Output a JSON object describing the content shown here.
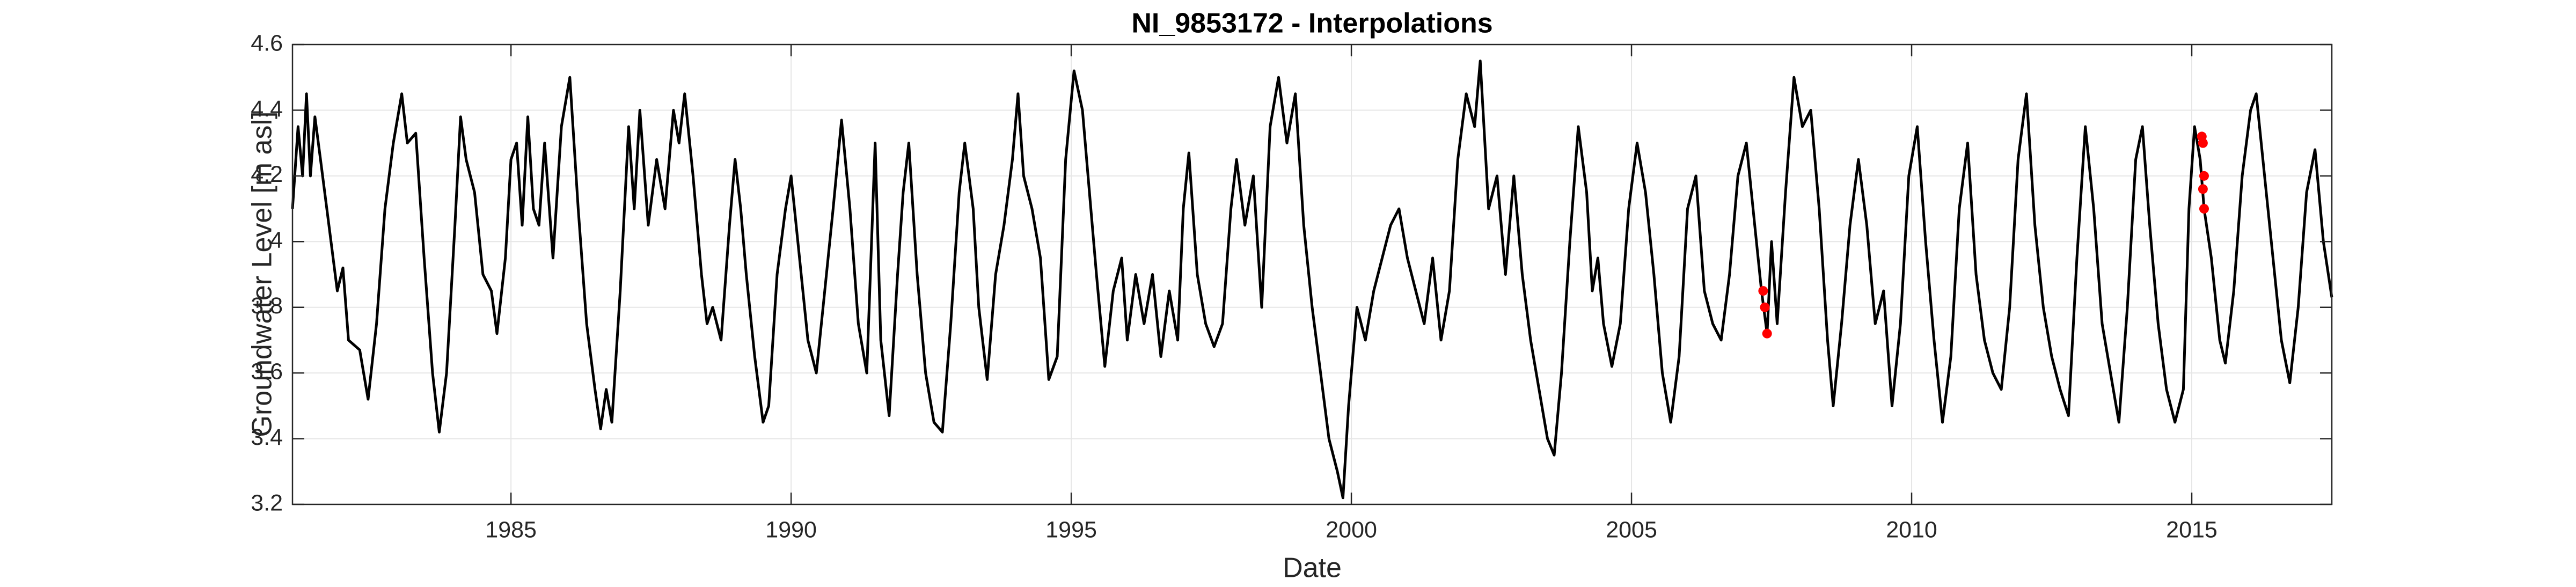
{
  "chart_data": {
    "type": "line",
    "title": "NI_9853172 - Interpolations",
    "xlabel": "Date",
    "ylabel": "Groundwater Level [m asl]",
    "xlim": [
      1981.1,
      2017.5
    ],
    "xticks": [
      1985,
      1990,
      1995,
      2000,
      2005,
      2010,
      2015
    ],
    "ylim": [
      3.2,
      4.6
    ],
    "yticks": [
      3.2,
      3.4,
      3.6,
      3.8,
      4,
      4.2,
      4.4,
      4.6
    ],
    "grid": true,
    "series": [
      {
        "color": "#000000",
        "style": "line",
        "x": [
          1981.1,
          1981.2,
          1981.28,
          1981.35,
          1981.42,
          1981.5,
          1981.6,
          1981.75,
          1981.9,
          1982.0,
          1982.1,
          1982.3,
          1982.45,
          1982.6,
          1982.75,
          1982.9,
          1983.05,
          1983.15,
          1983.3,
          1983.45,
          1983.6,
          1983.72,
          1983.85,
          1984.0,
          1984.1,
          1984.2,
          1984.35,
          1984.5,
          1984.65,
          1984.75,
          1984.9,
          1985.0,
          1985.1,
          1985.2,
          1985.3,
          1985.4,
          1985.5,
          1985.6,
          1985.75,
          1985.9,
          1986.05,
          1986.2,
          1986.35,
          1986.5,
          1986.6,
          1986.7,
          1986.8,
          1986.95,
          1987.1,
          1987.2,
          1987.3,
          1987.45,
          1987.6,
          1987.75,
          1987.9,
          1988.0,
          1988.1,
          1988.25,
          1988.4,
          1988.5,
          1988.6,
          1988.75,
          1988.9,
          1989.0,
          1989.1,
          1989.2,
          1989.35,
          1989.5,
          1989.6,
          1989.75,
          1989.9,
          1990.0,
          1990.15,
          1990.3,
          1990.45,
          1990.6,
          1990.75,
          1990.9,
          1991.05,
          1991.2,
          1991.35,
          1991.5,
          1991.6,
          1991.75,
          1991.9,
          1992.0,
          1992.1,
          1992.25,
          1992.4,
          1992.55,
          1992.7,
          1992.85,
          1993.0,
          1993.1,
          1993.25,
          1993.35,
          1993.5,
          1993.65,
          1993.8,
          1993.95,
          1994.05,
          1994.15,
          1994.3,
          1994.45,
          1994.6,
          1994.75,
          1994.9,
          1995.05,
          1995.2,
          1995.3,
          1995.45,
          1995.6,
          1995.75,
          1995.9,
          1996.0,
          1996.15,
          1996.3,
          1996.45,
          1996.6,
          1996.75,
          1996.9,
          1997.0,
          1997.1,
          1997.25,
          1997.4,
          1997.55,
          1997.7,
          1997.85,
          1997.95,
          1998.1,
          1998.25,
          1998.4,
          1998.55,
          1998.7,
          1998.85,
          1999.0,
          1999.15,
          1999.3,
          1999.45,
          1999.6,
          1999.75,
          1999.85,
          1999.95,
          2000.1,
          2000.25,
          2000.4,
          2000.55,
          2000.7,
          2000.85,
          2001.0,
          2001.15,
          2001.3,
          2001.45,
          2001.6,
          2001.75,
          2001.9,
          2002.05,
          2002.2,
          2002.3,
          2002.45,
          2002.6,
          2002.75,
          2002.9,
          2003.05,
          2003.2,
          2003.35,
          2003.5,
          2003.62,
          2003.75,
          2003.9,
          2004.05,
          2004.2,
          2004.3,
          2004.4,
          2004.5,
          2004.65,
          2004.8,
          2004.95,
          2005.1,
          2005.25,
          2005.4,
          2005.55,
          2005.7,
          2005.85,
          2006.0,
          2006.15,
          2006.3,
          2006.45,
          2006.6,
          2006.75,
          2006.9,
          2007.05,
          2007.2,
          2007.32,
          2007.42,
          2007.5,
          2007.6,
          2007.75,
          2007.9,
          2008.05,
          2008.2,
          2008.35,
          2008.5,
          2008.6,
          2008.75,
          2008.9,
          2009.05,
          2009.2,
          2009.35,
          2009.5,
          2009.65,
          2009.8,
          2009.95,
          2010.1,
          2010.25,
          2010.4,
          2010.55,
          2010.7,
          2010.85,
          2011.0,
          2011.15,
          2011.3,
          2011.45,
          2011.6,
          2011.75,
          2011.9,
          2012.05,
          2012.2,
          2012.35,
          2012.5,
          2012.65,
          2012.8,
          2012.95,
          2013.1,
          2013.25,
          2013.4,
          2013.55,
          2013.7,
          2013.85,
          2014.0,
          2014.12,
          2014.25,
          2014.4,
          2014.55,
          2014.7,
          2014.85,
          2014.95,
          2015.05,
          2015.15,
          2015.22,
          2015.35,
          2015.5,
          2015.6,
          2015.75,
          2015.9,
          2016.05,
          2016.15,
          2016.3,
          2016.45,
          2016.6,
          2016.75,
          2016.9,
          2017.05,
          2017.2,
          2017.35,
          2017.5
        ],
        "values": [
          4.1,
          4.35,
          4.2,
          4.45,
          4.2,
          4.38,
          4.25,
          4.05,
          3.85,
          3.92,
          3.7,
          3.67,
          3.52,
          3.75,
          4.1,
          4.3,
          4.45,
          4.3,
          4.33,
          3.95,
          3.6,
          3.42,
          3.6,
          4.05,
          4.38,
          4.25,
          4.15,
          3.9,
          3.85,
          3.72,
          3.95,
          4.25,
          4.3,
          4.05,
          4.38,
          4.1,
          4.05,
          4.3,
          3.95,
          4.35,
          4.5,
          4.1,
          3.75,
          3.55,
          3.43,
          3.55,
          3.45,
          3.85,
          4.35,
          4.1,
          4.4,
          4.05,
          4.25,
          4.1,
          4.4,
          4.3,
          4.45,
          4.2,
          3.9,
          3.75,
          3.8,
          3.7,
          4.05,
          4.25,
          4.1,
          3.9,
          3.65,
          3.45,
          3.5,
          3.9,
          4.1,
          4.2,
          3.95,
          3.7,
          3.6,
          3.85,
          4.1,
          4.37,
          4.1,
          3.75,
          3.6,
          4.3,
          3.7,
          3.47,
          3.9,
          4.15,
          4.3,
          3.9,
          3.6,
          3.45,
          3.42,
          3.75,
          4.15,
          4.3,
          4.1,
          3.8,
          3.58,
          3.9,
          4.05,
          4.25,
          4.45,
          4.2,
          4.1,
          3.95,
          3.58,
          3.65,
          4.25,
          4.52,
          4.4,
          4.2,
          3.9,
          3.62,
          3.85,
          3.95,
          3.7,
          3.9,
          3.75,
          3.9,
          3.65,
          3.85,
          3.7,
          4.1,
          4.27,
          3.9,
          3.75,
          3.68,
          3.75,
          4.1,
          4.25,
          4.05,
          4.2,
          3.8,
          4.35,
          4.5,
          4.3,
          4.45,
          4.05,
          3.8,
          3.6,
          3.4,
          3.3,
          3.22,
          3.5,
          3.8,
          3.7,
          3.85,
          3.95,
          4.05,
          4.1,
          3.95,
          3.85,
          3.75,
          3.95,
          3.7,
          3.85,
          4.25,
          4.45,
          4.35,
          4.55,
          4.1,
          4.2,
          3.9,
          4.2,
          3.9,
          3.7,
          3.55,
          3.4,
          3.35,
          3.6,
          4.0,
          4.35,
          4.15,
          3.85,
          3.95,
          3.75,
          3.62,
          3.75,
          4.1,
          4.3,
          4.15,
          3.9,
          3.6,
          3.45,
          3.65,
          4.1,
          4.2,
          3.85,
          3.75,
          3.7,
          3.9,
          4.2,
          4.3,
          4.05,
          3.85,
          3.72,
          4.0,
          3.75,
          4.15,
          4.5,
          4.35,
          4.4,
          4.1,
          3.7,
          3.5,
          3.75,
          4.05,
          4.25,
          4.05,
          3.75,
          3.85,
          3.5,
          3.75,
          4.2,
          4.35,
          4.0,
          3.7,
          3.45,
          3.65,
          4.1,
          4.3,
          3.9,
          3.7,
          3.6,
          3.55,
          3.8,
          4.25,
          4.45,
          4.05,
          3.8,
          3.65,
          3.55,
          3.47,
          3.95,
          4.35,
          4.1,
          3.75,
          3.6,
          3.45,
          3.8,
          4.25,
          4.35,
          4.05,
          3.75,
          3.55,
          3.45,
          3.55,
          4.1,
          4.35,
          4.25,
          4.1,
          3.95,
          3.7,
          3.63,
          3.85,
          4.2,
          4.4,
          4.45,
          4.2,
          3.95,
          3.7,
          3.57,
          3.8,
          4.15,
          4.28,
          4.0,
          3.83
        ]
      },
      {
        "color": "#ff0000",
        "style": "marker",
        "x": [
          2007.35,
          2007.38,
          2007.42,
          2015.18,
          2015.2,
          2015.22,
          2015.2,
          2015.22
        ],
        "values": [
          3.85,
          3.8,
          3.72,
          4.32,
          4.3,
          4.2,
          4.16,
          4.1
        ]
      }
    ]
  }
}
